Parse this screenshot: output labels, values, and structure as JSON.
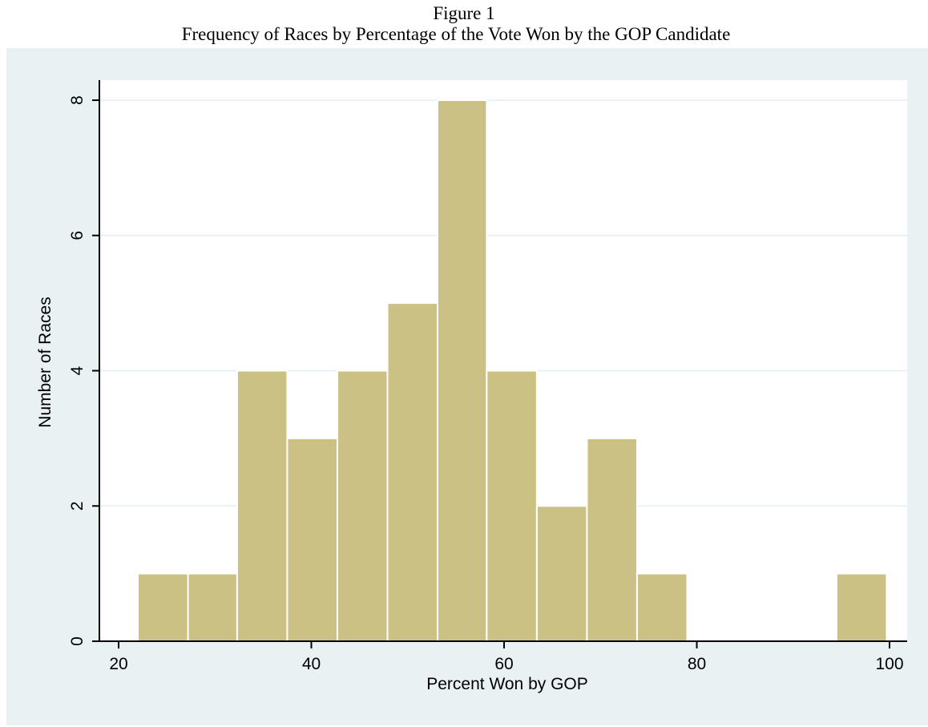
{
  "figure": {
    "number": "Figure 1",
    "title": "Frequency of Races by Percentage of the Vote Won by the GOP Candidate"
  },
  "colors": {
    "plot_region_bg": "#eaf1f3",
    "plot_bg": "#ffffff",
    "bar_fill": "#cbc185",
    "bar_edge": "#ffffff",
    "grid": "#e3eef0"
  },
  "chart_data": {
    "type": "bar",
    "title": "",
    "xlabel": "Percent Won by GOP",
    "ylabel": "Number of Races",
    "xlim": [
      20,
      100
    ],
    "ylim": [
      0,
      8
    ],
    "x_ticks": [
      20,
      40,
      60,
      80,
      100
    ],
    "y_ticks": [
      0,
      2,
      4,
      6,
      8
    ],
    "grid": true,
    "bins": [
      {
        "start": 22.0,
        "end": 27.2,
        "count": 1
      },
      {
        "start": 27.2,
        "end": 32.3,
        "count": 1
      },
      {
        "start": 32.3,
        "end": 37.5,
        "count": 4
      },
      {
        "start": 37.5,
        "end": 42.7,
        "count": 3
      },
      {
        "start": 42.7,
        "end": 47.9,
        "count": 4
      },
      {
        "start": 47.9,
        "end": 53.1,
        "count": 5
      },
      {
        "start": 53.1,
        "end": 58.2,
        "count": 8
      },
      {
        "start": 58.2,
        "end": 63.4,
        "count": 4
      },
      {
        "start": 63.4,
        "end": 68.6,
        "count": 2
      },
      {
        "start": 68.6,
        "end": 73.8,
        "count": 3
      },
      {
        "start": 73.8,
        "end": 79.0,
        "count": 1
      },
      {
        "start": 79.0,
        "end": 84.1,
        "count": 0
      },
      {
        "start": 84.1,
        "end": 89.3,
        "count": 0
      },
      {
        "start": 89.3,
        "end": 94.5,
        "count": 0
      },
      {
        "start": 94.5,
        "end": 99.7,
        "count": 1
      }
    ]
  }
}
